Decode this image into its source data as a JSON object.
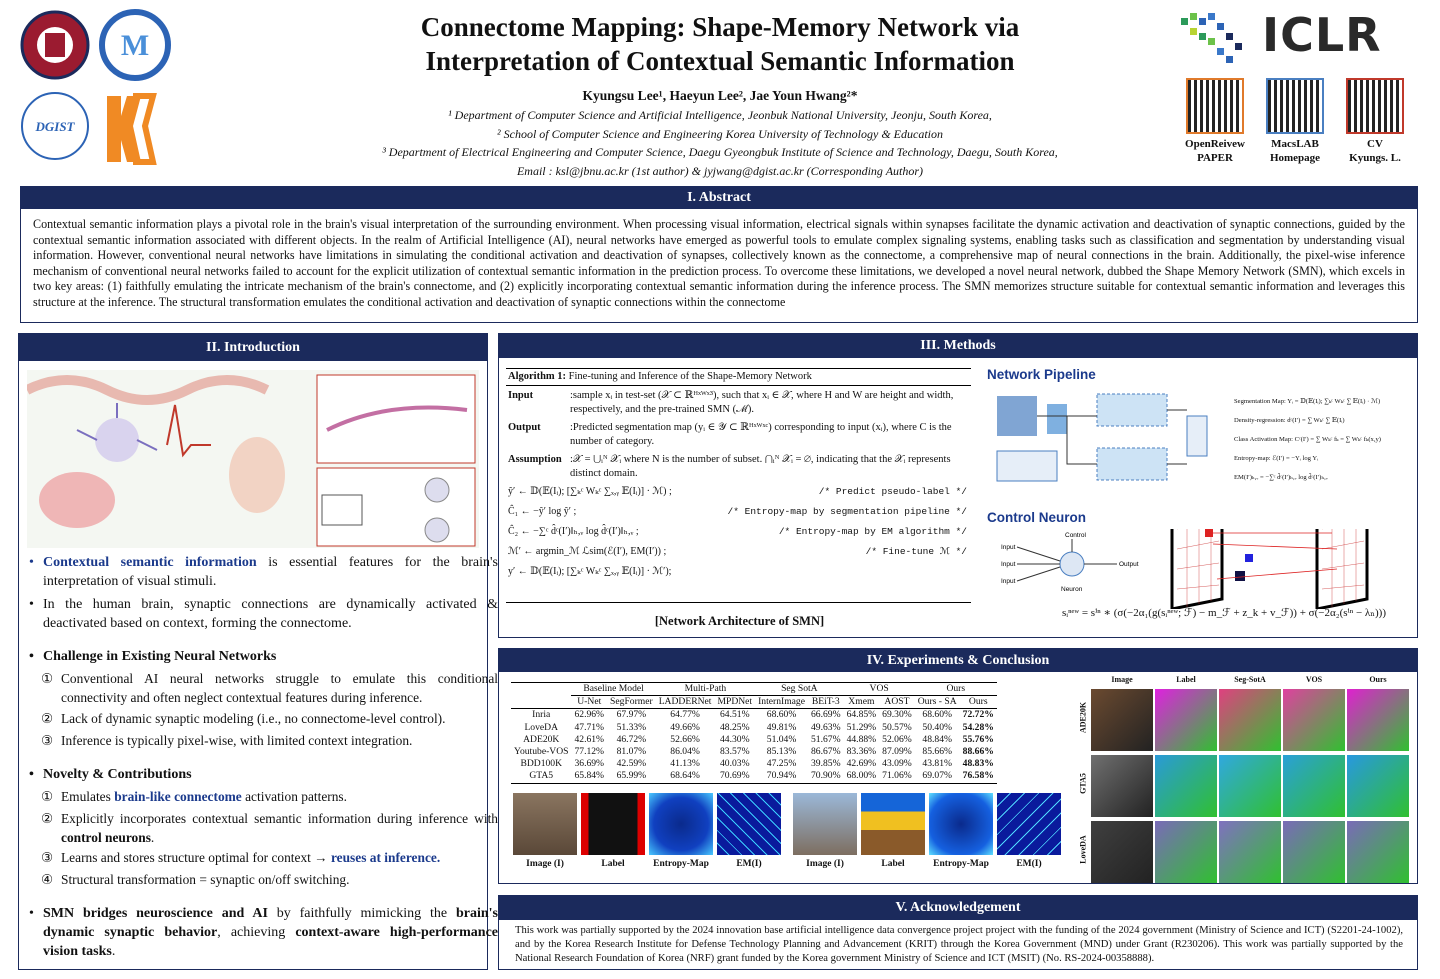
{
  "header": {
    "title": [
      "Connectome Mapping: Shape-Memory Network via",
      "Interpretation of Contextual Semantic Information"
    ],
    "authors": "Kyungsu Lee¹, Haeyun Lee², Jae Youn Hwang²*",
    "affiliations": [
      "¹ Department of Computer Science and Artificial Intelligence, Jeonbuk National University, Jeonju, South Korea,",
      "² School of Computer Science and Engineering Korea University of Technology & Education",
      "³ Department of Electrical Engineering and Computer Science, Daegu Gyeongbuk Institute of Science and Technology, Daegu, South Korea,"
    ],
    "email": "Email : ksl@jbnu.ac.kr (1st author) & jyjwang@dgist.ac.kr (Corresponding Author)",
    "conference": "ICLR",
    "qr_codes": [
      {
        "line1": "OpenReivew",
        "line2": "PAPER"
      },
      {
        "line1": "MacsLAB",
        "line2": "Homepage"
      },
      {
        "line1": "CV",
        "line2": "Kyungs. L."
      }
    ]
  },
  "abstract": {
    "heading": "I. Abstract",
    "text": "Contextual semantic information plays a pivotal role in the brain's visual interpretation of the surrounding environment. When processing visual information, electrical signals within synapses facilitate the dynamic activation and deactivation of synaptic connections, guided by the contextual semantic information associated with different objects. In the realm of Artificial Intelligence (AI), neural networks have emerged as powerful tools to emulate complex signaling systems, enabling tasks such as classification and segmentation by understanding visual information. However, conventional neural networks have limitations in simulating the conditional activation and deactivation of synapses, collectively known as the connectome, a comprehensive map of neural connections in the brain. Additionally, the pixel-wise inference mechanism of conventional neural networks failed to account for the explicit utilization of contextual semantic information in the prediction process. To overcome these limitations, we developed a novel neural network, dubbed the Shape Memory Network (SMN), which excels in two key areas: (1) faithfully emulating the intricate mechanism of the brain's connectome, and (2) explicitly incorporating contextual semantic information during the inference process. The SMN memorizes structure suitable for contextual semantic information and leverages this structure at the inference. The structural transformation emulates the conditional activation and deactivation of synaptic connections within the connectome"
  },
  "introduction": {
    "heading": "II. Introduction",
    "point1": [
      "Contextual semantic information",
      " is essential features for the brain's interpretation of visual stimuli."
    ],
    "point2": "In the human brain, synaptic connections are dynamically activated & deactivated based on context, forming the connectome.",
    "challenge": {
      "heading": "Challenge in Existing Neural Networks",
      "items": [
        {
          "number": "①",
          "text": "Conventional AI neural networks struggle to emulate this conditional connectivity and often neglect contextual features during inference."
        },
        {
          "number": "②",
          "text": "Lack of dynamic synaptic modeling (i.e., no connectome-level control)."
        },
        {
          "number": "③",
          "text": "Inference is typically pixel-wise, with limited context integration."
        }
      ]
    },
    "novelty": {
      "heading": "Novelty & Contributions",
      "items": [
        {
          "number": "①",
          "parts": [
            "Emulates ",
            "brain-like connectome",
            " activation patterns."
          ]
        },
        {
          "number": "②",
          "parts": [
            "Explicitly incorporates contextual semantic information during inference with ",
            "control neurons",
            "."
          ]
        },
        {
          "number": "③",
          "parts": [
            "Learns and stores structure optimal for context → ",
            "reuses at inference."
          ]
        },
        {
          "number": "④",
          "parts": [
            "Structural transformation = synaptic on/off switching."
          ]
        }
      ]
    },
    "summary": [
      "SMN bridges neuroscience and AI",
      " by faithfully mimicking the ",
      "brain's dynamic synaptic behavior",
      ", achieving ",
      "context-aware high-performance vision tasks",
      "."
    ]
  },
  "methods": {
    "heading": "III. Methods",
    "algorithm": {
      "label": "Algorithm 1:",
      "title": "Fine-tuning and Inference of the Shape-Memory Network",
      "fields": [
        {
          "label": "Input",
          "text": ":sample xᵢ in test-set (𝒳 ⊂ ℝᴴˣᵂˣ³), such that xᵢ ∈ 𝒳, where H and W are height and width, respectively, and the pre-trained SMN (ℳ)."
        },
        {
          "label": "Output",
          "text": ":Predicted segmentation map (yᵢ ∈ 𝒴 ⊂ ℝᴴˣᵂˣᶜ) corresponding to input (xᵢ), where C is the number of category."
        },
        {
          "label": "Assumption",
          "text": ":𝒳 = ⋃ᵢᴺ 𝒳ᵢ where N is the number of subset. ⋂ᵢᴺ 𝒳ᵢ = ∅, indicating that the 𝒳ᵢ represents distinct domain."
        }
      ],
      "steps": [
        {
          "eq": "ŷ′ ← 𝔻(𝔼(Iᵢ); [∑ₖᶜ Wₖᶜ ∑ₓ,ᵧ 𝔼(Iᵢ)] · ℳ) ;",
          "comment": "/* Predict pseudo-label */"
        },
        {
          "eq": "Ĉ₁ ← −ŷ′ log ŷ′ ;",
          "comment": "/* Entropy-map by segmentation pipeline */"
        },
        {
          "eq": "Ĉ₂ ← −∑ᶜ d̂ᶜ(I′)‖ₕ,ᵥ log d̂ᶜ(I′)‖ₕ,ᵥ ;",
          "comment": "/* Entropy-map by EM algorithm */"
        },
        {
          "eq": "ℳ′ ← argmin_ℳ ℒsim(ℰ(I′), EM(I′)) ;",
          "comment": "/* Fine-tune ℳ */"
        },
        {
          "eq": "y′ ← 𝔻(𝔼(Iᵢ); [∑ₖᶜ Wₖᶜ ∑ₓ,ᵧ 𝔼(Iᵢ)] · ℳ′);"
        }
      ]
    },
    "caption": "[Network Architecture of SMN]",
    "pipeline": {
      "heading": "Network Pipeline",
      "equations": [
        "Segmentation Map: Yᵢ = 𝔻(𝔼(Iᵢ); ∑ₖᶜ Wₖᶜ ∑ 𝔼(Iᵢ) · ℳ)",
        "Density-regression: dᶜ(I′) = ∑ Wₖᶜ ∑ 𝔼(Iᵢ)",
        "Class Activation Map: Cᶜ(I′) = ∑ Wₖᶜ fₖ = ∑ Wₖᶜ fₖ(x,y)",
        "Entropy-map: ℰ(I′) = −Yᵢ log Yᵢ",
        "EM(I′)ₕ,ᵥ = −∑ᶜ d̂ᶜ(I′)ₕ,ᵥ log d̂ᶜ(I′)ₕ,ᵥ"
      ]
    },
    "control": {
      "heading": "Control Neuron",
      "inputs": [
        "Input",
        "Input",
        "Input"
      ],
      "control": "Control",
      "neuron": "Neuron",
      "output": "Output",
      "equation": "sᵢⁿᵉʷ = sⁱⁿ ∗ (σ(−2α₁(g(sᵢⁿᵉʷ; ℱ) − m_ℱ + z_k + v_ℱ)) + σ(−2α₂(sⁱⁿ − λₙ)))"
    }
  },
  "experiments": {
    "heading": "IV.  Experiments & Conclusion",
    "table": {
      "groups": [
        {
          "name": "Baseline Model",
          "models": [
            "U-Net",
            "SegFormer"
          ]
        },
        {
          "name": "Multi-Path",
          "models": [
            "LADDERNet",
            "MPDNet"
          ]
        },
        {
          "name": "Seg SotA",
          "models": [
            "InternImage",
            "BEiT-3"
          ]
        },
        {
          "name": "VOS",
          "models": [
            "Xmem",
            "AOST"
          ]
        },
        {
          "name": "Ours",
          "models": [
            "Ours - SA",
            "Ours"
          ]
        }
      ],
      "rows": [
        {
          "dataset": "Inria",
          "values": [
            "62.96%",
            "67.97%",
            "64.77%",
            "64.51%",
            "68.60%",
            "66.69%",
            "64.85%",
            "69.30%",
            "68.60%",
            "72.72%"
          ]
        },
        {
          "dataset": "LoveDA",
          "values": [
            "47.71%",
            "51.33%",
            "49.66%",
            "48.25%",
            "49.81%",
            "49.63%",
            "51.29%",
            "50.57%",
            "50.40%",
            "54.28%"
          ]
        },
        {
          "dataset": "ADE20K",
          "values": [
            "42.61%",
            "46.72%",
            "52.66%",
            "44.30%",
            "51.04%",
            "51.67%",
            "44.88%",
            "52.06%",
            "48.84%",
            "55.76%"
          ]
        },
        {
          "dataset": "Youtube-VOS",
          "values": [
            "77.12%",
            "81.07%",
            "86.04%",
            "83.57%",
            "85.13%",
            "86.67%",
            "83.36%",
            "87.09%",
            "85.66%",
            "88.66%"
          ]
        },
        {
          "dataset": "BDD100K",
          "values": [
            "36.69%",
            "42.59%",
            "41.13%",
            "40.03%",
            "47.25%",
            "39.85%",
            "42.69%",
            "43.09%",
            "43.81%",
            "48.83%"
          ]
        },
        {
          "dataset": "GTA5",
          "values": [
            "65.84%",
            "65.99%",
            "68.64%",
            "70.69%",
            "70.94%",
            "70.90%",
            "68.00%",
            "71.06%",
            "69.07%",
            "76.58%"
          ]
        }
      ]
    },
    "entropy_captions_1": [
      "Image (I)",
      "Label",
      "Entropy-Map",
      "EM(I)"
    ],
    "entropy_captions_2": [
      "Image (I)",
      "Label",
      "Entropy-Map",
      "EM(I)"
    ],
    "grid_columns": [
      "Image",
      "Label",
      "Seg-SotA",
      "VOS",
      "Ours"
    ],
    "grid_rows": [
      "ADE20K",
      "GTA5",
      "LoveDA"
    ]
  },
  "acknowledgement": {
    "heading": "V. Acknowledgement",
    "text": "This work was partially supported by the 2024 innovation base artificial intelligence data convergence project project with the funding of the 2024 government (Ministry of Science and ICT) (S2201-24-1002), and by the Korea Research Institute for Defense Technology Planning and Advancement (KRIT) through the Korea Government (MND) under Grant (R230206). This work was partially supported by the National Research Foundation of Korea (NRF) grant funded by the Korea government Ministry of Science and ICT (MSIT) (No. RS-2024-00358888)."
  }
}
